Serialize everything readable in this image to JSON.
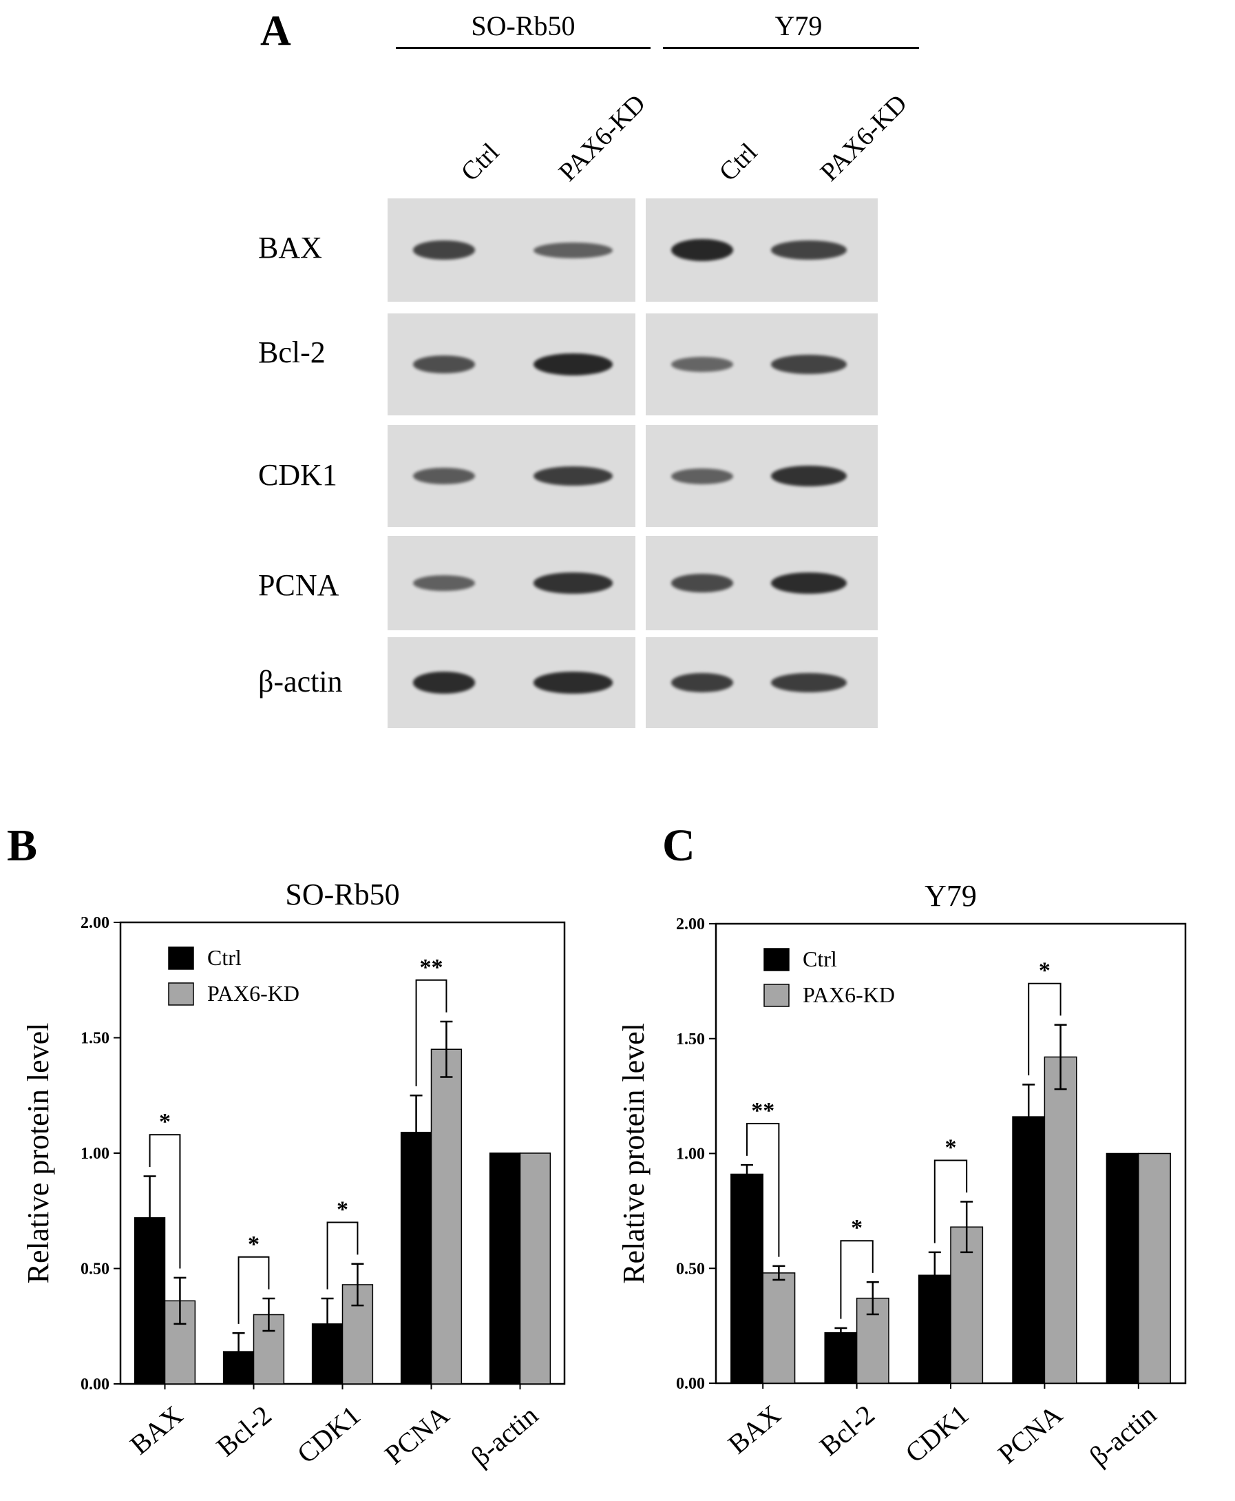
{
  "panel_a": {
    "letter": "A",
    "cell_lines": [
      "SO-Rb50",
      "Y79"
    ],
    "lanes": [
      "Ctrl",
      "PAX6-KD",
      "Ctrl",
      "PAX6-KD"
    ],
    "proteins": [
      "BAX",
      "Bcl-2",
      "CDK1",
      "PCNA",
      "β-actin"
    ],
    "blot_background": "#dcdcdc",
    "band_color": "#1e1e1e"
  },
  "panel_b": {
    "letter": "B"
  },
  "panel_c": {
    "letter": "C"
  },
  "chart_data": [
    {
      "type": "bar",
      "title": "SO-Rb50",
      "ylabel": "Relative protein level",
      "xlabel": "",
      "categories": [
        "BAX",
        "Bcl-2",
        "CDK1",
        "PCNA",
        "β-actin"
      ],
      "ylim": [
        0,
        2.0
      ],
      "yticks": [
        "0.00",
        "0.50",
        "1.00",
        "1.50",
        "2.00"
      ],
      "legend_position": "top-left",
      "series": [
        {
          "name": "Ctrl",
          "color": "#000000",
          "values": [
            0.72,
            0.14,
            0.26,
            1.09,
            1.0
          ],
          "errors": [
            0.18,
            0.08,
            0.11,
            0.16,
            0.0
          ]
        },
        {
          "name": "PAX6-KD",
          "color": "#a6a6a6",
          "values": [
            0.36,
            0.3,
            0.43,
            1.45,
            1.0
          ],
          "errors": [
            0.1,
            0.07,
            0.09,
            0.12,
            0.0
          ]
        }
      ],
      "significance": [
        "*",
        "*",
        "*",
        "**",
        ""
      ]
    },
    {
      "type": "bar",
      "title": "Y79",
      "ylabel": "Relative protein level",
      "xlabel": "",
      "categories": [
        "BAX",
        "Bcl-2",
        "CDK1",
        "PCNA",
        "β-actin"
      ],
      "ylim": [
        0,
        2.0
      ],
      "yticks": [
        "0.00",
        "0.50",
        "1.00",
        "1.50",
        "2.00"
      ],
      "legend_position": "top-left",
      "series": [
        {
          "name": "Ctrl",
          "color": "#000000",
          "values": [
            0.91,
            0.22,
            0.47,
            1.16,
            1.0
          ],
          "errors": [
            0.04,
            0.02,
            0.1,
            0.14,
            0.0
          ]
        },
        {
          "name": "PAX6-KD",
          "color": "#a6a6a6",
          "values": [
            0.48,
            0.37,
            0.68,
            1.42,
            1.0
          ],
          "errors": [
            0.03,
            0.07,
            0.11,
            0.14,
            0.0
          ]
        }
      ],
      "significance": [
        "**",
        "*",
        "*",
        "*",
        ""
      ]
    }
  ]
}
